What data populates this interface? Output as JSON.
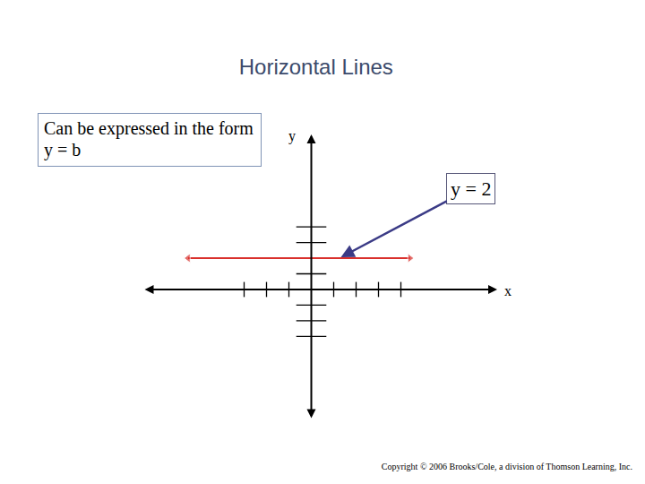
{
  "chart_data": {
    "type": "line",
    "title": "Horizontal Lines",
    "note": "Can be expressed in the form y = b",
    "copyright": "Copyright © 2006 Brooks/Cole, a division of Thomson Learning, Inc.",
    "x_label": "x",
    "y_label": "y",
    "series": [
      {
        "name": "y = 2",
        "color": "#d9302c",
        "line_style": "solid",
        "marker": "arrow",
        "x": [
          -5.5,
          4.4
        ],
        "values": [
          2,
          2
        ]
      }
    ],
    "annotations": [
      {
        "text": "y = 2",
        "x": 1.25,
        "y": 2
      }
    ],
    "xlim": [
      -7.5,
      8.3
    ],
    "ylim": [
      -8.3,
      9.9
    ],
    "xticks": [
      -3,
      -2,
      -1,
      1,
      2,
      3,
      4
    ],
    "yticks": [
      -3,
      -2,
      -1,
      1,
      2,
      3,
      4
    ],
    "grid": false,
    "tick_labels": false
  }
}
